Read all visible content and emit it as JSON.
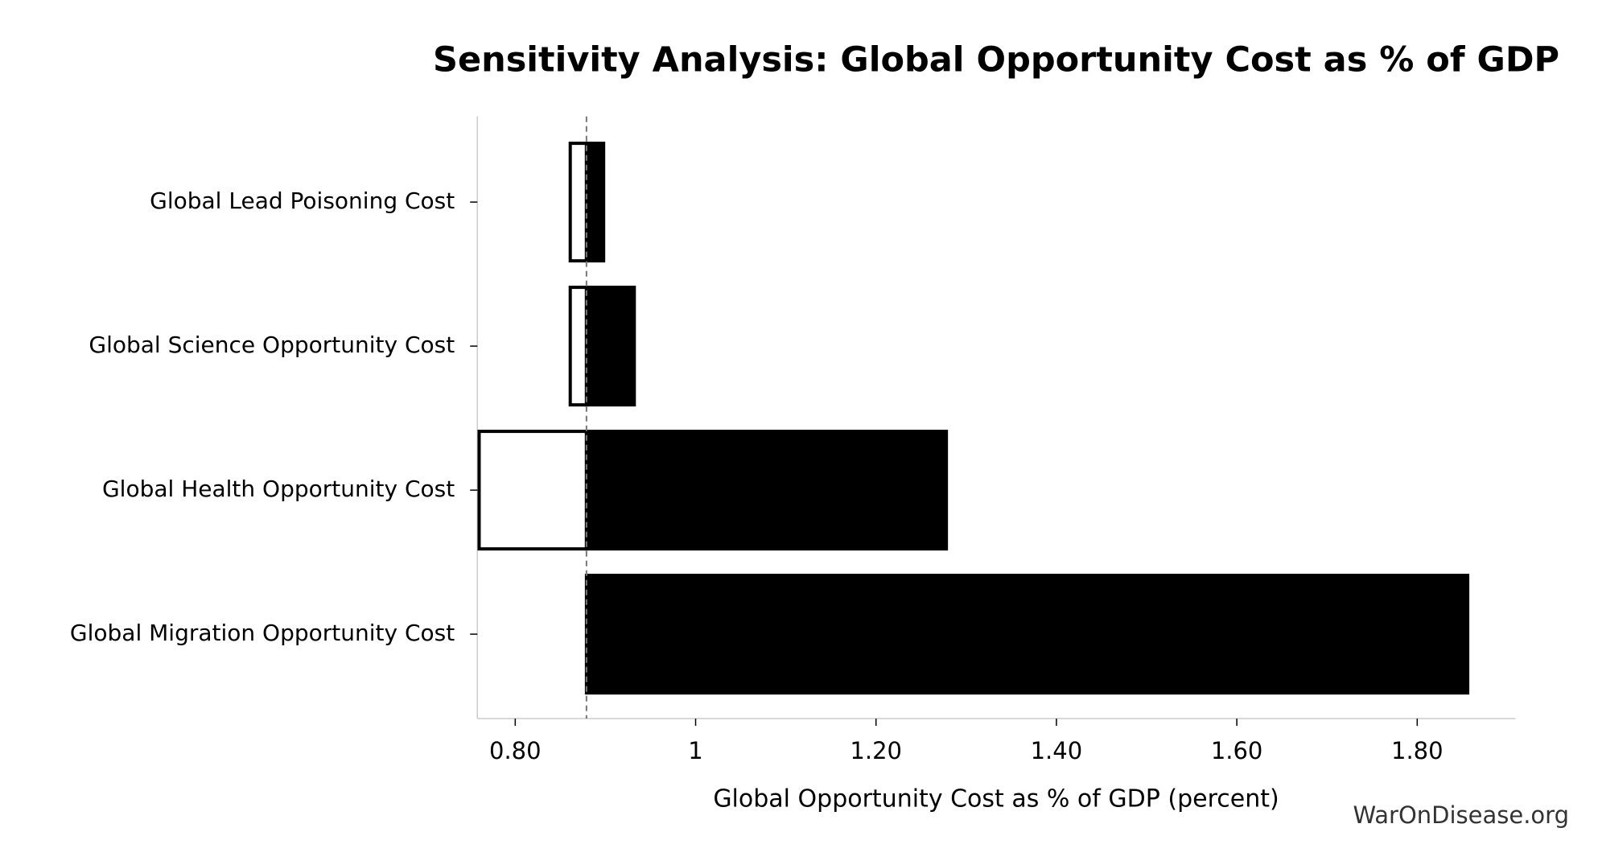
{
  "chart_data": {
    "type": "tornado",
    "title": "Sensitivity Analysis: Global Opportunity Cost as % of GDP",
    "xlabel": "Global Opportunity Cost as % of GDP (percent)",
    "watermark": "WarOnDisease.org",
    "categories": [
      "Global Lead Poisoning Cost",
      "Global Science Opportunity Cost",
      "Global Health Opportunity Cost",
      "Global Migration Opportunity Cost"
    ],
    "baseline": 0.879,
    "series": [
      {
        "color": "#ffffff",
        "edgecolor": "#000000",
        "values": [
          0.861,
          0.861,
          0.76,
          0.879
        ]
      },
      {
        "color": "#000000",
        "edgecolor": "#000000",
        "values": [
          0.898,
          0.932,
          1.278,
          1.856
        ]
      }
    ],
    "xlim": [
      0.758,
      1.909
    ],
    "xticks": [
      {
        "value": 0.8,
        "label": "0.80"
      },
      1,
      {
        "value": 1.2,
        "label": "1.20"
      },
      {
        "value": 1.4,
        "label": "1.40"
      },
      {
        "value": 1.6,
        "label": "1.60"
      },
      {
        "value": 1.8,
        "label": "1.80"
      }
    ]
  }
}
